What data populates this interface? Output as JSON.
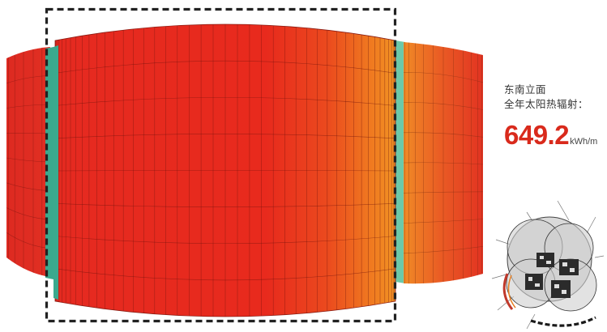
{
  "annotation": {
    "facade_name": "东南立面",
    "metric_label": "全年太阳热辐射：",
    "value": "649.2",
    "unit": "kWh/m"
  },
  "colors": {
    "high_radiation": "#e8261f",
    "medium_radiation": "#f07d22",
    "low_radiation": "#6cc9a9",
    "highlight_frame": "#222222",
    "value_text": "#d92a1c"
  },
  "icons": [
    "site-plan-thumbnail-icon"
  ]
}
